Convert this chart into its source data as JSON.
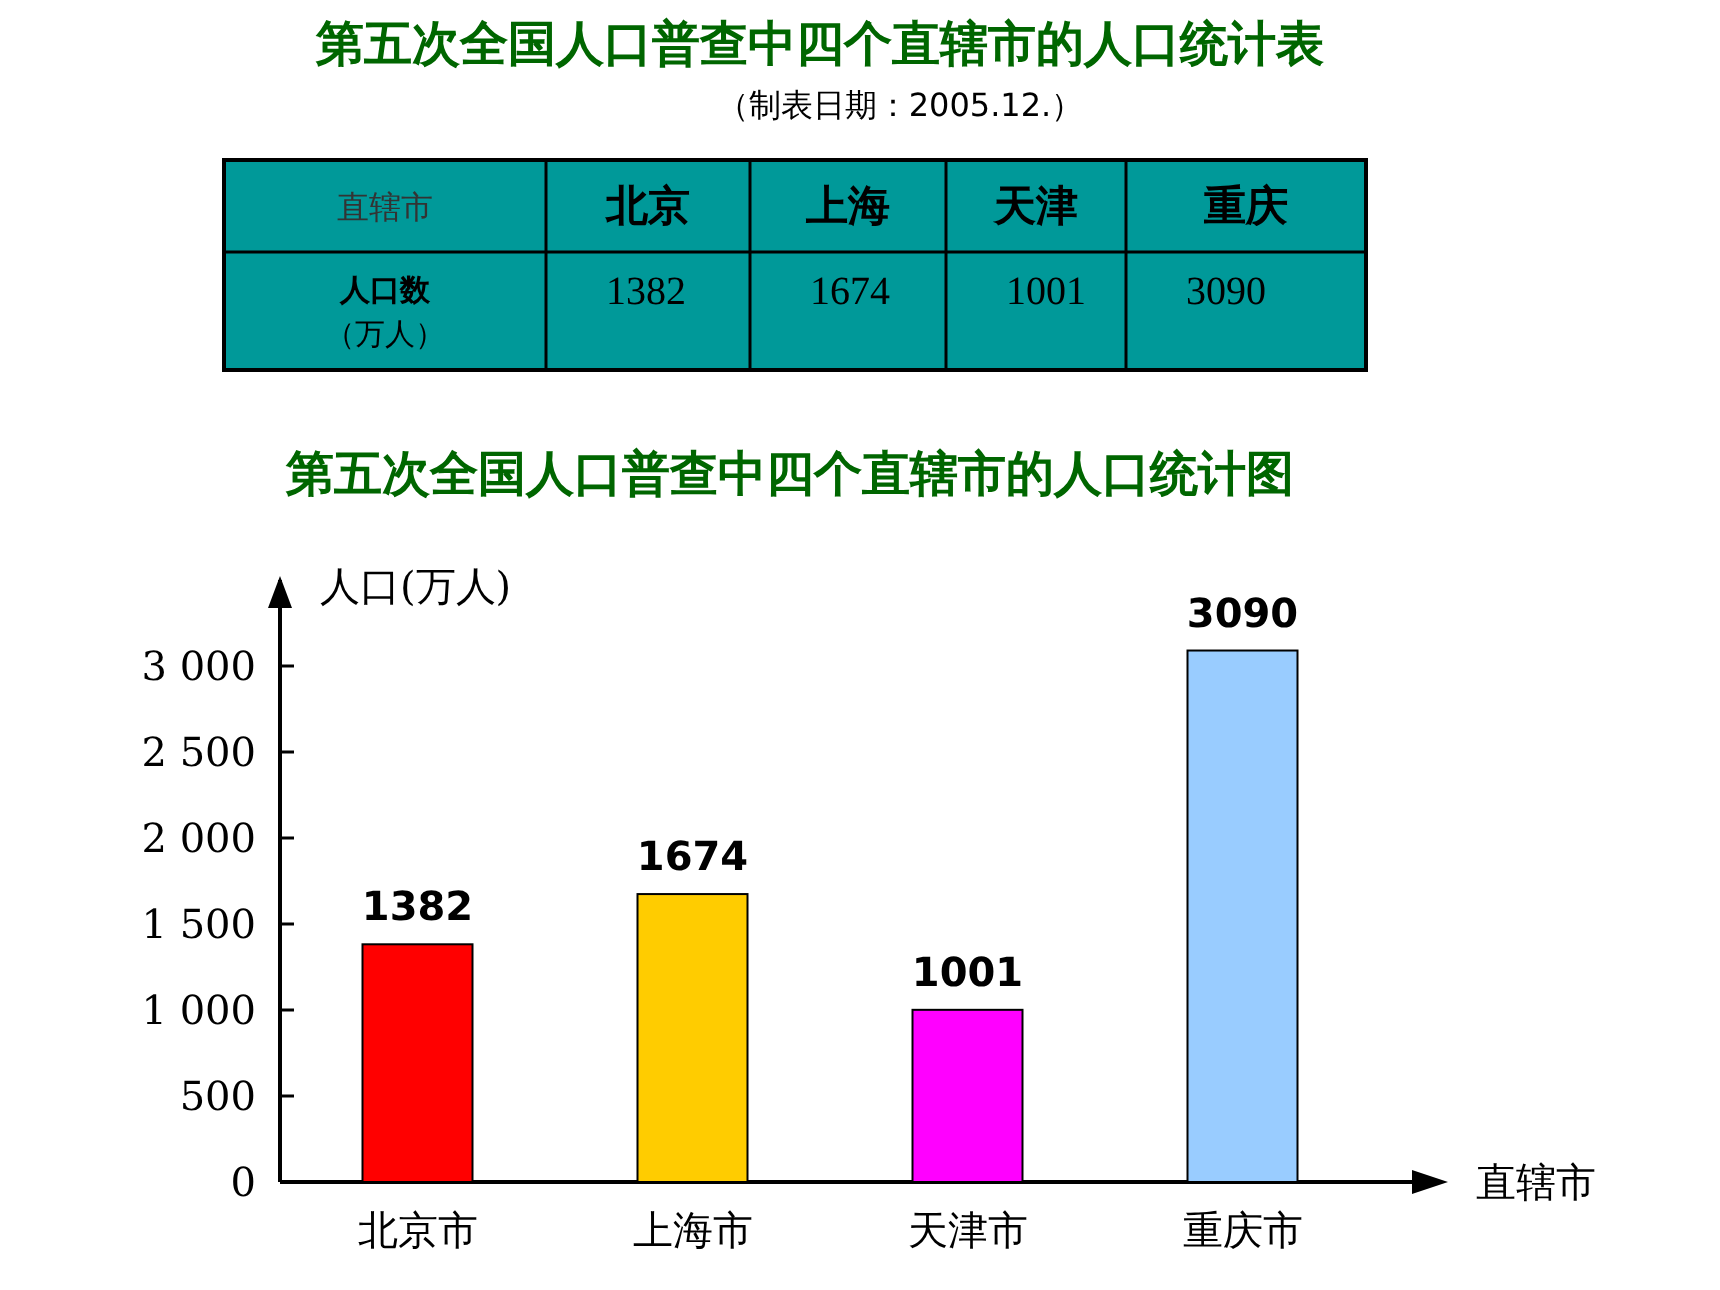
{
  "chart_data": [
    {
      "type": "other",
      "title": "第五次全国人口普查中四个直辖市的人口统计表",
      "subtitle": "（制表日期：2005.12.）",
      "xlabel": "直辖市",
      "ylabel": "人口数（万人）",
      "categories": [
        "北京",
        "上海",
        "天津",
        "重庆"
      ],
      "values": [
        1382,
        1674,
        1001,
        3090
      ],
      "data_labels": true
    },
    {
      "type": "bar",
      "title": "第五次全国人口普查中四个直辖市的人口统计图",
      "xlabel": "直辖市",
      "ylabel": "人口(万人)",
      "categories": [
        "北京市",
        "上海市",
        "天津市",
        "重庆市"
      ],
      "values": [
        1382,
        1674,
        1001,
        3090
      ],
      "colors": [
        "#ff0000",
        "#ffcc00",
        "#ff00ff",
        "#99ccff"
      ],
      "ylim": [
        0,
        3500
      ],
      "yticks": [
        0,
        500,
        {
          "value": 1000,
          "label": "1 000"
        },
        {
          "value": 1500,
          "label": "1 500"
        },
        {
          "value": 2000,
          "label": "2 000"
        },
        {
          "value": 2500,
          "label": "2 500"
        },
        {
          "value": 3000,
          "label": "3 000"
        }
      ],
      "data_labels": true,
      "grid": false
    }
  ]
}
